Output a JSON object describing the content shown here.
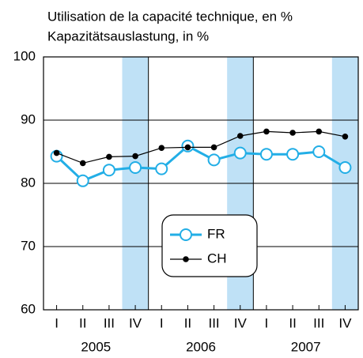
{
  "chart_data": {
    "type": "line",
    "title": "Utilisation de la capacité technique, en %",
    "subtitle": "Kapazitätsauslastung, in %",
    "categories": [
      "I",
      "II",
      "III",
      "IV",
      "I",
      "II",
      "III",
      "IV",
      "I",
      "II",
      "III",
      "IV"
    ],
    "years": [
      "2005",
      "2006",
      "2007"
    ],
    "series": [
      {
        "name": "FR",
        "color": "#22aee6",
        "values": [
          84.3,
          80.4,
          82.1,
          82.5,
          82.3,
          85.9,
          83.7,
          84.8,
          84.6,
          84.6,
          85.0,
          82.5
        ]
      },
      {
        "name": "CH",
        "color": "#000000",
        "values": [
          84.8,
          83.2,
          84.2,
          84.3,
          85.6,
          85.7,
          85.7,
          87.5,
          88.2,
          88.0,
          88.2,
          87.4
        ]
      }
    ],
    "ylim": [
      60,
      100
    ],
    "yticks": [
      60,
      70,
      80,
      90,
      100
    ],
    "grid": true,
    "band_color": "#bfe1f6"
  }
}
